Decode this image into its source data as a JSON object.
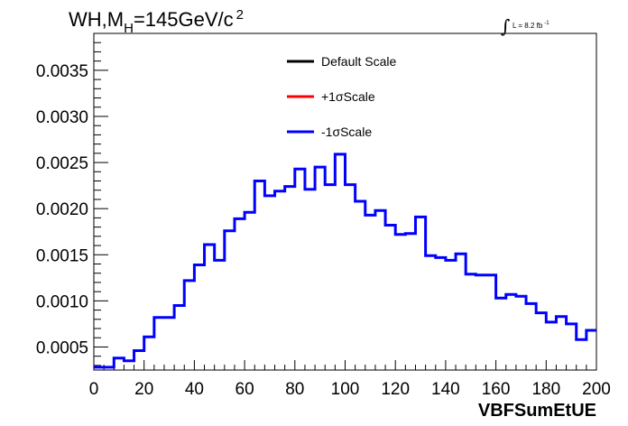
{
  "chart_data": {
    "type": "line",
    "title": {
      "main": "WH,M",
      "sub": "H",
      "rest": "=145GeV/c",
      "sup": "2"
    },
    "lumi": {
      "text": "L = 8.2 fb",
      "sup": "-1"
    },
    "xlabel": "VBFSumEtUE",
    "ylabel": "",
    "xlim": [
      0,
      200
    ],
    "ylim": [
      0.00025,
      0.0039
    ],
    "x_ticks": [
      0,
      20,
      40,
      60,
      80,
      100,
      120,
      140,
      160,
      180,
      200
    ],
    "x_tick_labels": [
      "0",
      "20",
      "40",
      "60",
      "80",
      "100",
      "120",
      "140",
      "160",
      "180",
      "200"
    ],
    "y_ticks": [
      0.0005,
      0.001,
      0.0015,
      0.002,
      0.0025,
      0.003,
      0.0035
    ],
    "y_tick_labels": [
      "0.0005",
      "0.0010",
      "0.0015",
      "0.0020",
      "0.0025",
      "0.0030",
      "0.0035"
    ],
    "bin_width": 4,
    "bin_edges_start": 0,
    "legend": {
      "position": "top-center",
      "entries": [
        {
          "label": "Default Scale",
          "color": "#000000"
        },
        {
          "label": "+1σScale",
          "color": "#ff0000"
        },
        {
          "label": "-1σScale",
          "color": "#0000ff"
        }
      ]
    },
    "series": [
      {
        "name": "-1σScale",
        "color": "#0000ff",
        "values": [
          0.00028,
          0.00028,
          0.00038,
          0.00035,
          0.00046,
          0.00061,
          0.00082,
          0.00082,
          0.00095,
          0.00122,
          0.00139,
          0.00161,
          0.00144,
          0.00176,
          0.00189,
          0.00196,
          0.0023,
          0.00214,
          0.00219,
          0.00224,
          0.00243,
          0.00221,
          0.00245,
          0.00226,
          0.00259,
          0.00226,
          0.00208,
          0.00193,
          0.00198,
          0.00182,
          0.00172,
          0.00173,
          0.00191,
          0.00149,
          0.00147,
          0.00144,
          0.00151,
          0.00129,
          0.00128,
          0.00128,
          0.00103,
          0.00107,
          0.00105,
          0.00097,
          0.00087,
          0.00077,
          0.00083,
          0.00075,
          0.00058,
          0.00068
        ]
      }
    ]
  }
}
